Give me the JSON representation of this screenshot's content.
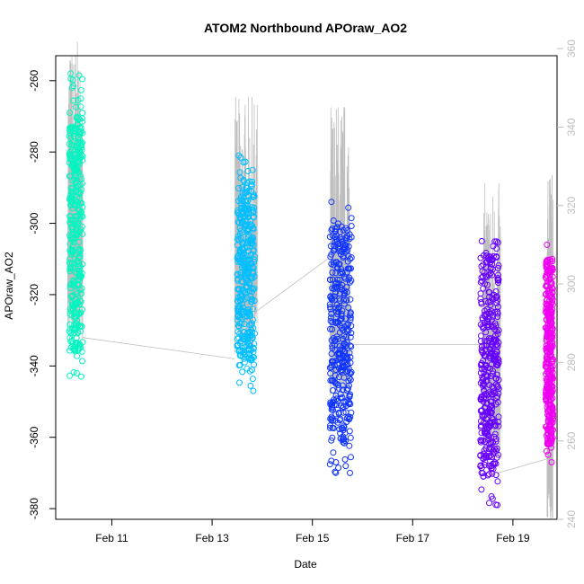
{
  "chart_data": {
    "type": "scatter",
    "title": "ATOM2 Northbound APOraw_AO2",
    "xlabel": "Date",
    "ylabel": "APOraw_AO2",
    "x_unit": "days in February",
    "xlim": [
      9.88,
      19.88
    ],
    "ylim": [
      -383,
      -253
    ],
    "x_ticks": [
      {
        "value": 11,
        "label": "Feb 11"
      },
      {
        "value": 13,
        "label": "Feb 13"
      },
      {
        "value": 15,
        "label": "Feb 15"
      },
      {
        "value": 17,
        "label": "Feb 17"
      },
      {
        "value": 19,
        "label": "Feb 19"
      }
    ],
    "y_ticks": [
      -380,
      -360,
      -340,
      -320,
      -300,
      -280,
      -260
    ],
    "y2_ticks": [
      240,
      260,
      280,
      300,
      320,
      340,
      360
    ],
    "y2_range_at_ylim": [
      240.0,
      358.2
    ],
    "grid": false,
    "legend": "none",
    "series": [
      {
        "x_range": [
          10.15,
          10.42
        ],
        "y_min": -343,
        "y_max": -258,
        "core": [
          -336,
          -272
        ],
        "color": "#00f5c0"
      },
      {
        "x_range": [
          13.5,
          13.85
        ],
        "y_min": -347,
        "y_max": -281,
        "core": [
          -340,
          -288
        ],
        "color": "#00bfff"
      },
      {
        "x_range": [
          15.35,
          15.78
        ],
        "y_min": -370,
        "y_max": -294,
        "core": [
          -362,
          -300
        ],
        "color": "#1034ff"
      },
      {
        "x_range": [
          18.35,
          18.72
        ],
        "y_min": -379,
        "y_max": -305,
        "core": [
          -371,
          -309
        ],
        "color": "#6600ff"
      },
      {
        "x_range": [
          19.65,
          19.8
        ],
        "y_min": -367,
        "y_max": -306,
        "core": [
          -362,
          -310
        ],
        "color": "#f000f0"
      }
    ],
    "trace": {
      "color": "#bebebe",
      "segments": [
        {
          "x_range": [
            10.12,
            10.42
          ],
          "y2_min": 285,
          "y2_max": 362
        },
        {
          "x_range": [
            13.45,
            13.9
          ],
          "y2_min": 282,
          "y2_max": 348
        },
        {
          "x_range": [
            15.35,
            15.75
          ],
          "y2_min": 270,
          "y2_max": 348
        },
        {
          "x_range": [
            18.4,
            18.75
          ],
          "y2_min": 255,
          "y2_max": 326
        },
        {
          "x_range": [
            19.68,
            19.8
          ],
          "y2_min": 240,
          "y2_max": 328
        }
      ],
      "connectors": [
        {
          "from": [
            10.4,
            -332
          ],
          "to": [
            13.45,
            -338
          ]
        },
        {
          "from": [
            13.85,
            -325
          ],
          "to": [
            15.4,
            -309
          ]
        },
        {
          "from": [
            15.75,
            -334
          ],
          "to": [
            18.4,
            -334
          ]
        },
        {
          "from": [
            18.7,
            -370
          ],
          "to": [
            19.7,
            -366
          ]
        }
      ]
    }
  }
}
